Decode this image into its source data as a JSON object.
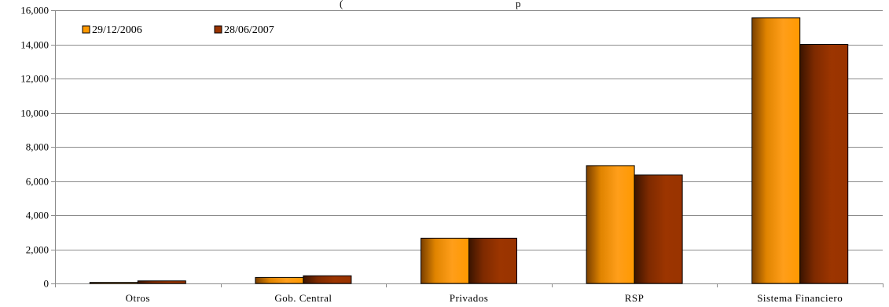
{
  "chart_data": {
    "type": "bar",
    "title_fragment_left": "(",
    "title_fragment_right": "p",
    "categories": [
      "Otros",
      "Gob. Central",
      "Privados",
      "RSP",
      "Sistema Financiero"
    ],
    "series": [
      {
        "name": "29/12/2006",
        "values": [
          60,
          350,
          2650,
          6900,
          15550
        ],
        "color": "#FF9900"
      },
      {
        "name": "28/06/2007",
        "values": [
          150,
          450,
          2650,
          6350,
          14000
        ],
        "color": "#993300"
      }
    ],
    "ylim": [
      0,
      16000
    ],
    "yticks": [
      0,
      2000,
      4000,
      6000,
      8000,
      10000,
      12000,
      14000,
      16000
    ],
    "ytick_labels": [
      "0",
      "2,000",
      "4,000",
      "6,000",
      "8,000",
      "10,000",
      "12,000",
      "14,000",
      "16,000"
    ],
    "grid": true,
    "legend_position": "top-left",
    "xlabel": "",
    "ylabel": ""
  }
}
